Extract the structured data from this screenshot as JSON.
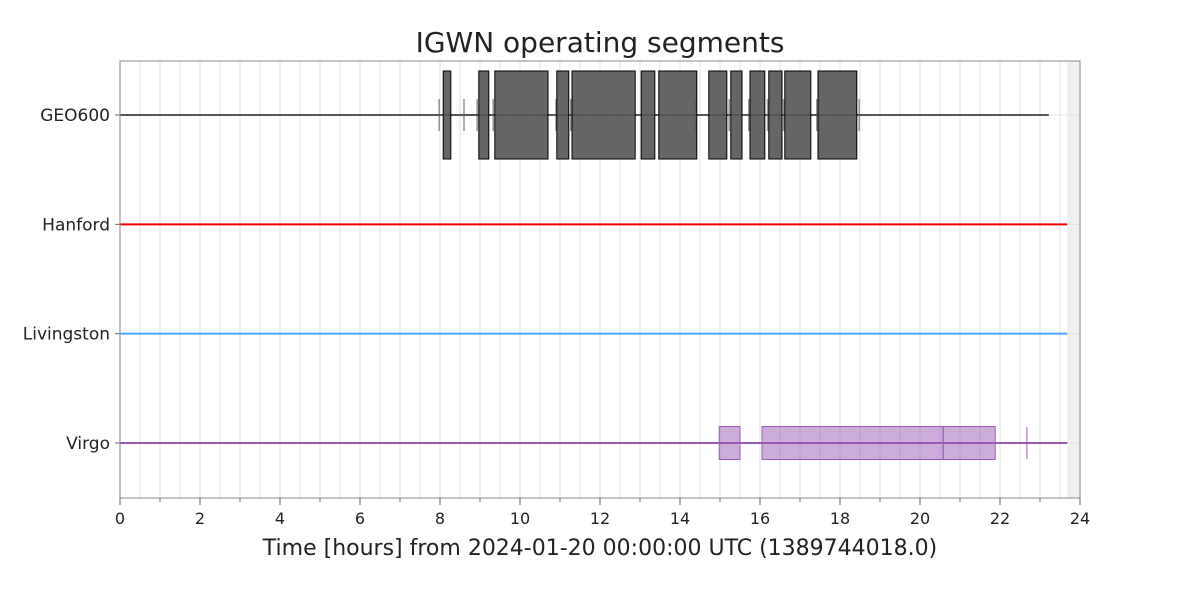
{
  "chart_data": {
    "type": "segments",
    "title": "IGWN operating segments",
    "xlabel": "Time [hours] from 2024-01-20 00:00:00 UTC (1389744018.0)",
    "ylabel": "",
    "xlim": [
      0,
      24
    ],
    "xticks": [
      0,
      2,
      4,
      6,
      8,
      10,
      12,
      14,
      16,
      18,
      20,
      22,
      24
    ],
    "grid": true,
    "data_end_hours": 23.68,
    "rows": [
      {
        "name": "GEO600",
        "color": "#555555",
        "baseline": [
          [
            0,
            23.22
          ]
        ],
        "segments": [
          [
            8.08,
            8.27
          ],
          [
            8.97,
            9.22
          ],
          [
            9.37,
            10.7
          ],
          [
            10.92,
            11.22
          ],
          [
            11.3,
            12.88
          ],
          [
            13.03,
            13.37
          ],
          [
            13.47,
            14.42
          ],
          [
            14.72,
            15.17
          ],
          [
            15.27,
            15.55
          ],
          [
            15.75,
            16.12
          ],
          [
            16.22,
            16.55
          ],
          [
            16.62,
            17.27
          ],
          [
            17.45,
            18.42
          ]
        ],
        "ticks": [
          7.98,
          8.6,
          8.93,
          9.33,
          10.9,
          11.27,
          14.38,
          15.23,
          15.72,
          16.19,
          16.59,
          17.42,
          18.48
        ]
      },
      {
        "name": "Hanford",
        "color": "#ee0000",
        "baseline": [
          [
            0,
            23.68
          ]
        ],
        "segments": [],
        "ticks": []
      },
      {
        "name": "Livingston",
        "color": "#4ba6ff",
        "baseline": [
          [
            0,
            23.68
          ]
        ],
        "segments": [],
        "ticks": []
      },
      {
        "name": "Virgo",
        "color": "#9b59b6",
        "baseline": [
          [
            0,
            23.68
          ]
        ],
        "segments": [
          [
            14.98,
            15.5
          ],
          [
            16.05,
            20.58
          ],
          [
            20.58,
            21.88
          ]
        ],
        "ticks": [
          22.67
        ]
      }
    ]
  }
}
